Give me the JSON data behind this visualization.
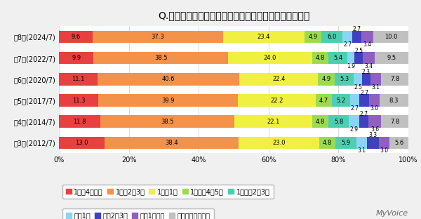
{
  "title": "Q.ふだん、コーヒーをどのくらいの頻度で飲みますか？",
  "rows": [
    {
      "label": "第8回(2024/7)",
      "values": [
        9.6,
        37.3,
        23.4,
        4.9,
        6.0,
        2.7,
        2.7,
        3.4,
        10.0
      ]
    },
    {
      "label": "第7回(2022/7)",
      "values": [
        9.9,
        38.5,
        24.0,
        4.8,
        5.4,
        1.9,
        2.5,
        3.4,
        9.5
      ]
    },
    {
      "label": "第6回(2020/7)",
      "values": [
        11.1,
        40.6,
        22.4,
        4.9,
        5.3,
        2.5,
        2.3,
        3.1,
        7.8
      ]
    },
    {
      "label": "第5回(2017/7)",
      "values": [
        11.3,
        39.9,
        22.2,
        4.7,
        5.2,
        2.7,
        2.7,
        3.0,
        8.3
      ]
    },
    {
      "label": "第4回(2014/7)",
      "values": [
        11.8,
        38.5,
        22.1,
        4.8,
        5.8,
        2.9,
        2.7,
        3.6,
        7.8
      ]
    },
    {
      "label": "第3回(2012/7)",
      "values": [
        13.0,
        38.4,
        23.0,
        4.8,
        5.9,
        3.1,
        3.3,
        3.0,
        5.6
      ]
    }
  ],
  "categories": [
    "1日に4回以上",
    "1日に2～3回",
    "1日に1回",
    "1週間に4～5回",
    "1週間に2～3回",
    "週に1回",
    "月に2～3回",
    "月に1回以下",
    "まったく飲まない"
  ],
  "colors": [
    "#e84040",
    "#f4924a",
    "#f0f040",
    "#9ddb4e",
    "#4ccfb0",
    "#8ad4f5",
    "#4040c0",
    "#9060c0",
    "#c0c0c0"
  ],
  "legend_items": [
    {
      "label": "1日に4回以上",
      "color": "#e84040"
    },
    {
      "label": "1日に2～3回",
      "color": "#f4924a"
    },
    {
      "label": "1日に1回",
      "color": "#f0f040"
    },
    {
      "label": "1週間に4～5回",
      "color": "#9ddb4e"
    },
    {
      "label": "1週間に2～3回",
      "color": "#4ccfb0"
    },
    {
      "label": "週に1回",
      "color": "#8ad4f5"
    },
    {
      "label": "月に2～3回",
      "color": "#4040c0"
    },
    {
      "label": "月に1回以下",
      "color": "#9060c0"
    },
    {
      "label": "まったく飲まない",
      "color": "#c0c0c0"
    }
  ],
  "background_color": "#f0f0f0",
  "plot_background": "#ffffff",
  "watermark": "MyVoice",
  "title_fontsize": 10,
  "label_fontsize": 7,
  "bar_label_fontsize": 6,
  "legend_fontsize": 7,
  "bar_height": 0.58
}
